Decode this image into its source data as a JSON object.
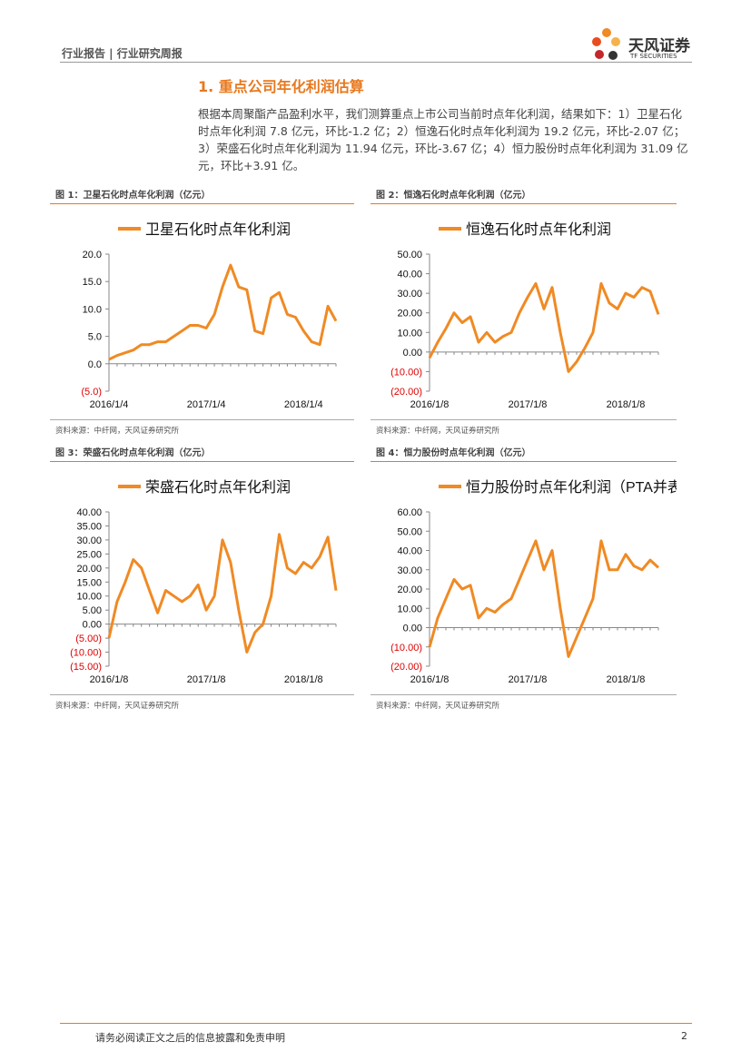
{
  "header": {
    "left": "行业报告 | 行业研究周报",
    "logo_cn": "天风证券",
    "logo_en": "TF SECURITIES"
  },
  "section_title": "1. 重点公司年化利润估算",
  "paragraph": "根据本周聚酯产品盈利水平，我们测算重点上市公司当前时点年化利润，结果如下：1）卫星石化时点年化利润 7.8 亿元，环比-1.2 亿；2）恒逸石化时点年化利润为 19.2 亿元，环比-2.07 亿；3）荣盛石化时点年化利润为 11.94 亿元，环比-3.67 亿；4）恒力股份时点年化利润为 31.09 亿元，环比+3.91 亿。",
  "chart_data": [
    {
      "type": "line",
      "caption": "图 1：卫星石化时点年化利润（亿元）",
      "source": "资料来源：中纤网，天风证券研究所",
      "categories": [
        "2016/1/4",
        null,
        null,
        null,
        null,
        null,
        null,
        null,
        null,
        null,
        null,
        null,
        "2017/1/4",
        null,
        null,
        null,
        null,
        null,
        null,
        null,
        null,
        null,
        null,
        null,
        "2018/1/4",
        null,
        null,
        null,
        null
      ],
      "series": [
        {
          "name": "卫星石化时点年化利润",
          "color": "#f08a24",
          "values": [
            0.8,
            1.5,
            2,
            2.5,
            3.5,
            3.5,
            4,
            4,
            5,
            6,
            7,
            7,
            6.5,
            9,
            14,
            18,
            14,
            13.5,
            6,
            5.5,
            12,
            13,
            9,
            8.5,
            6,
            4,
            3.5,
            10.5,
            7.8
          ]
        }
      ],
      "ylim": [
        -5,
        20
      ],
      "yticks": [
        {
          "value": -5,
          "label": "(5.0)"
        },
        {
          "value": 0,
          "label": "0.0"
        },
        {
          "value": 5,
          "label": "5.0"
        },
        {
          "value": 10,
          "label": "10.0"
        },
        {
          "value": 15,
          "label": "15.0"
        },
        {
          "value": 20,
          "label": "20.0"
        }
      ],
      "negative_label_color": "#e00000"
    },
    {
      "type": "line",
      "caption": "图 2：恒逸石化时点年化利润（亿元）",
      "source": "资料来源：中纤网，天风证券研究所",
      "categories": [
        "2016/1/8",
        null,
        null,
        null,
        null,
        null,
        null,
        null,
        null,
        null,
        null,
        null,
        "2017/1/8",
        null,
        null,
        null,
        null,
        null,
        null,
        null,
        null,
        null,
        null,
        null,
        "2018/1/8",
        null,
        null,
        null,
        null
      ],
      "series": [
        {
          "name": "恒逸石化时点年化利润",
          "color": "#f08a24",
          "values": [
            -3,
            5,
            12,
            20,
            15,
            18,
            5,
            10,
            5,
            8,
            10,
            20,
            28,
            35,
            22,
            33,
            10,
            -10,
            -5,
            2,
            10,
            35,
            25,
            22,
            30,
            28,
            33,
            31,
            19.2
          ]
        }
      ],
      "ylim": [
        -20,
        50
      ],
      "yticks": [
        {
          "value": -20,
          "label": "(20.00)"
        },
        {
          "value": -10,
          "label": "(10.00)"
        },
        {
          "value": 0,
          "label": "0.00"
        },
        {
          "value": 10,
          "label": "10.00"
        },
        {
          "value": 20,
          "label": "20.00"
        },
        {
          "value": 30,
          "label": "30.00"
        },
        {
          "value": 40,
          "label": "40.00"
        },
        {
          "value": 50,
          "label": "50.00"
        }
      ],
      "negative_label_color": "#e00000"
    },
    {
      "type": "line",
      "caption": "图 3：荣盛石化时点年化利润（亿元）",
      "source": "资料来源：中纤网，天风证券研究所",
      "categories": [
        "2016/1/8",
        null,
        null,
        null,
        null,
        null,
        null,
        null,
        null,
        null,
        null,
        null,
        "2017/1/8",
        null,
        null,
        null,
        null,
        null,
        null,
        null,
        null,
        null,
        null,
        null,
        "2018/1/8",
        null,
        null,
        null,
        null
      ],
      "series": [
        {
          "name": "荣盛石化时点年化利润",
          "color": "#f08a24",
          "values": [
            -5,
            8,
            15,
            23,
            20,
            12,
            4,
            12,
            10,
            8,
            10,
            14,
            5,
            10,
            30,
            22,
            5,
            -10,
            -3,
            0,
            10,
            32,
            20,
            18,
            22,
            20,
            24,
            31,
            11.94
          ]
        }
      ],
      "ylim": [
        -15,
        40
      ],
      "yticks": [
        {
          "value": -15,
          "label": "(15.00)"
        },
        {
          "value": -10,
          "label": "(10.00)"
        },
        {
          "value": -5,
          "label": "(5.00)"
        },
        {
          "value": 0,
          "label": "0.00"
        },
        {
          "value": 5,
          "label": "5.00"
        },
        {
          "value": 10,
          "label": "10.00"
        },
        {
          "value": 15,
          "label": "15.00"
        },
        {
          "value": 20,
          "label": "20.00"
        },
        {
          "value": 25,
          "label": "25.00"
        },
        {
          "value": 30,
          "label": "30.00"
        },
        {
          "value": 35,
          "label": "35.00"
        },
        {
          "value": 40,
          "label": "40.00"
        }
      ],
      "negative_label_color": "#e00000"
    },
    {
      "type": "line",
      "caption": "图 4：恒力股份时点年化利润（亿元）",
      "source": "资料来源：中纤网，天风证券研究所",
      "categories": [
        "2016/1/8",
        null,
        null,
        null,
        null,
        null,
        null,
        null,
        null,
        null,
        null,
        null,
        "2017/1/8",
        null,
        null,
        null,
        null,
        null,
        null,
        null,
        null,
        null,
        null,
        null,
        "2018/1/8",
        null,
        null,
        null,
        null
      ],
      "series": [
        {
          "name": "恒力股份时点年化利润（PTA并表）",
          "color": "#f08a24",
          "values": [
            -10,
            5,
            15,
            25,
            20,
            22,
            5,
            10,
            8,
            12,
            15,
            25,
            35,
            45,
            30,
            40,
            10,
            -15,
            -5,
            5,
            15,
            45,
            30,
            30,
            38,
            32,
            30,
            35,
            31.09
          ]
        }
      ],
      "ylim": [
        -20,
        60
      ],
      "yticks": [
        {
          "value": -20,
          "label": "(20.00)"
        },
        {
          "value": -10,
          "label": "(10.00)"
        },
        {
          "value": 0,
          "label": "0.00"
        },
        {
          "value": 10,
          "label": "10.00"
        },
        {
          "value": 20,
          "label": "20.00"
        },
        {
          "value": 30,
          "label": "30.00"
        },
        {
          "value": 40,
          "label": "40.00"
        },
        {
          "value": 50,
          "label": "50.00"
        },
        {
          "value": 60,
          "label": "60.00"
        }
      ],
      "negative_label_color": "#e00000"
    }
  ],
  "footer": {
    "disclaimer": "请务必阅读正文之后的信息披露和免责申明",
    "page": 2
  }
}
